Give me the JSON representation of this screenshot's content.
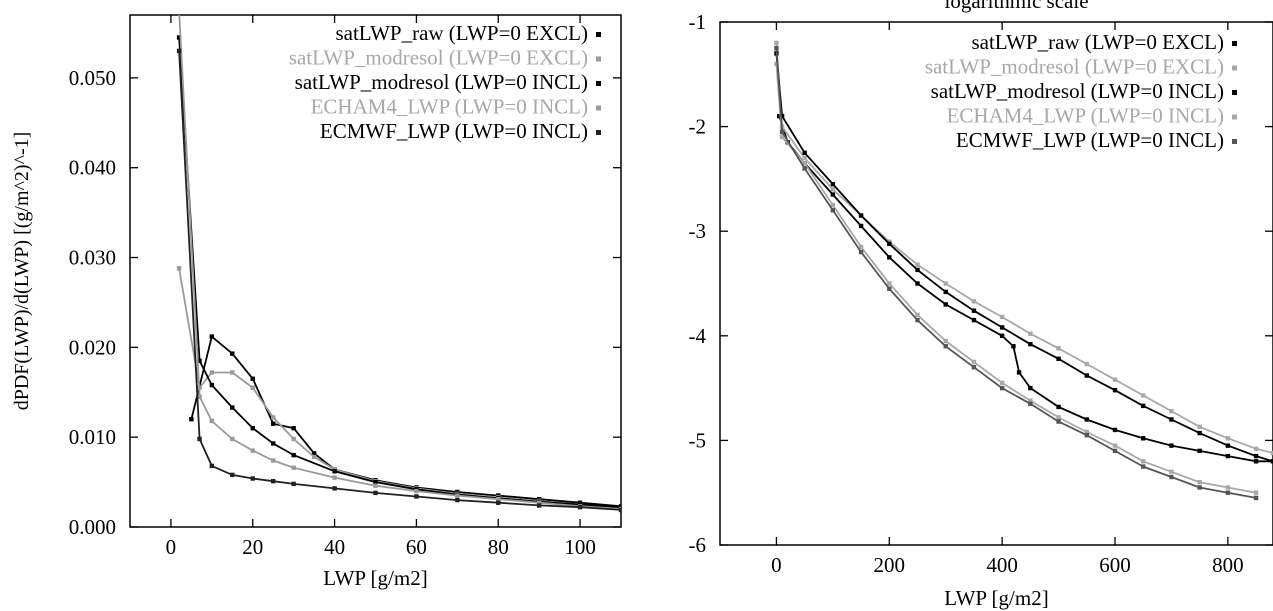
{
  "chart_data": [
    {
      "type": "line",
      "title": "",
      "xlabel": "LWP [g/m2]",
      "ylabel": "dPDF(LWP)/d(LWP) [(g/m^2)^-1]",
      "xlim": [
        -10,
        110
      ],
      "ylim": [
        0.0,
        0.057
      ],
      "xticks": [
        0,
        20,
        40,
        60,
        80,
        100
      ],
      "xtick_labels": [
        "0",
        "20",
        "40",
        "60",
        "80",
        "100"
      ],
      "yticks": [
        0.0,
        0.01,
        0.02,
        0.03,
        0.04,
        0.05
      ],
      "ytick_labels": [
        "0.000",
        "0.010",
        "0.020",
        "0.030",
        "0.040",
        "0.050"
      ],
      "grid": false,
      "legend_position": "top-right",
      "series": [
        {
          "name": "satLWP_raw (LWP=0 EXCL)",
          "color": "#000000",
          "x": [
            5,
            10,
            15,
            20,
            25,
            30,
            35,
            40,
            50,
            60,
            70,
            80,
            90,
            100,
            110
          ],
          "y": [
            0.012,
            0.0212,
            0.0193,
            0.0165,
            0.0115,
            0.011,
            0.0082,
            0.0064,
            0.0052,
            0.0044,
            0.0039,
            0.0035,
            0.0031,
            0.0027,
            0.0023
          ]
        },
        {
          "name": "satLWP_modresol (LWP=0 EXCL)",
          "color": "#9a9a9a",
          "x": [
            2,
            7,
            10,
            15,
            20,
            25,
            30,
            35,
            40,
            50,
            60,
            70,
            80,
            90,
            100,
            110
          ],
          "y": [
            0.0288,
            0.0155,
            0.0172,
            0.0172,
            0.0155,
            0.0122,
            0.0098,
            0.0078,
            0.0064,
            0.0051,
            0.0043,
            0.0037,
            0.0033,
            0.0029,
            0.0025,
            0.0021
          ]
        },
        {
          "name": "satLWP_modresol (LWP=0 INCL)",
          "color": "#000000",
          "x": [
            2,
            7,
            10,
            15,
            20,
            25,
            30,
            40,
            50,
            60,
            70,
            80,
            90,
            100,
            110
          ],
          "y": [
            0.0545,
            0.0185,
            0.0158,
            0.0133,
            0.011,
            0.0093,
            0.008,
            0.0062,
            0.005,
            0.0042,
            0.0036,
            0.0032,
            0.0028,
            0.0025,
            0.0022
          ]
        },
        {
          "name": "ECHAM4_LWP (LWP=0 INCL)",
          "color": "#9a9a9a",
          "x": [
            2,
            7,
            10,
            15,
            20,
            25,
            30,
            40,
            50,
            60,
            70,
            80,
            90,
            100,
            110
          ],
          "y": [
            0.0575,
            0.0145,
            0.0118,
            0.0098,
            0.0085,
            0.0074,
            0.0066,
            0.0055,
            0.0046,
            0.004,
            0.0035,
            0.0031,
            0.0027,
            0.0023,
            0.002
          ]
        },
        {
          "name": "ECMWF_LWP (LWP=0 INCL)",
          "color": "#222222",
          "x": [
            2,
            7,
            10,
            15,
            20,
            25,
            30,
            40,
            50,
            60,
            70,
            80,
            90,
            100,
            110
          ],
          "y": [
            0.053,
            0.0098,
            0.0068,
            0.0058,
            0.0054,
            0.0051,
            0.0048,
            0.0043,
            0.0038,
            0.0034,
            0.003,
            0.0027,
            0.0024,
            0.0022,
            0.0019
          ]
        }
      ]
    },
    {
      "type": "line",
      "title": "logarithmic scale",
      "xlabel": "LWP [g/m2]",
      "ylabel": "",
      "xlim": [
        -100,
        880
      ],
      "ylim": [
        -6,
        -1
      ],
      "xticks": [
        0,
        200,
        400,
        600,
        800
      ],
      "xtick_labels": [
        "0",
        "200",
        "400",
        "600",
        "800"
      ],
      "yticks": [
        -6,
        -5,
        -4,
        -3,
        -2,
        -1
      ],
      "ytick_labels": [
        "-6",
        "-5",
        "-4",
        "-3",
        "-2",
        "-1"
      ],
      "grid": false,
      "legend_position": "top-right",
      "series": [
        {
          "name": "satLWP_raw (LWP=0 EXCL)",
          "color": "#000000",
          "x": [
            5,
            20,
            50,
            100,
            150,
            200,
            250,
            300,
            350,
            400,
            420,
            430,
            450,
            500,
            550,
            600,
            650,
            700,
            750,
            800,
            850,
            880
          ],
          "y": [
            -1.9,
            -2.15,
            -2.35,
            -2.65,
            -2.95,
            -3.25,
            -3.5,
            -3.7,
            -3.85,
            -4.0,
            -4.1,
            -4.35,
            -4.5,
            -4.68,
            -4.8,
            -4.9,
            -4.98,
            -5.05,
            -5.1,
            -5.15,
            -5.2,
            -5.2
          ]
        },
        {
          "name": "satLWP_modresol (LWP=0 EXCL)",
          "color": "#a8a8a8",
          "x": [
            0,
            10,
            50,
            100,
            150,
            200,
            250,
            300,
            350,
            400,
            450,
            500,
            550,
            600,
            650,
            700,
            750,
            800,
            850,
            880
          ],
          "y": [
            -1.2,
            -2.0,
            -2.3,
            -2.6,
            -2.85,
            -3.1,
            -3.32,
            -3.5,
            -3.67,
            -3.82,
            -3.98,
            -4.12,
            -4.27,
            -4.42,
            -4.57,
            -4.72,
            -4.87,
            -4.98,
            -5.08,
            -5.12
          ]
        },
        {
          "name": "satLWP_modresol (LWP=0 INCL)",
          "color": "#000000",
          "x": [
            0,
            10,
            50,
            100,
            150,
            200,
            250,
            300,
            350,
            400,
            450,
            500,
            550,
            600,
            650,
            700,
            750,
            800,
            850,
            880
          ],
          "y": [
            -1.3,
            -1.9,
            -2.25,
            -2.55,
            -2.85,
            -3.12,
            -3.37,
            -3.58,
            -3.76,
            -3.92,
            -4.08,
            -4.22,
            -4.38,
            -4.52,
            -4.67,
            -4.8,
            -4.93,
            -5.05,
            -5.15,
            -5.2
          ]
        },
        {
          "name": "ECHAM4_LWP (LWP=0 INCL)",
          "color": "#a8a8a8",
          "x": [
            0,
            10,
            50,
            100,
            150,
            200,
            250,
            300,
            350,
            400,
            450,
            500,
            550,
            600,
            650,
            700,
            750,
            800,
            850
          ],
          "y": [
            -1.4,
            -2.1,
            -2.35,
            -2.75,
            -3.15,
            -3.5,
            -3.8,
            -4.05,
            -4.25,
            -4.45,
            -4.62,
            -4.78,
            -4.92,
            -5.05,
            -5.2,
            -5.3,
            -5.4,
            -5.45,
            -5.5
          ]
        },
        {
          "name": "ECMWF_LWP (LWP=0 INCL)",
          "color": "#555555",
          "x": [
            0,
            10,
            50,
            100,
            150,
            200,
            250,
            300,
            350,
            400,
            450,
            500,
            550,
            600,
            650,
            700,
            750,
            800,
            850
          ],
          "y": [
            -1.25,
            -2.05,
            -2.4,
            -2.8,
            -3.2,
            -3.55,
            -3.85,
            -4.1,
            -4.3,
            -4.5,
            -4.65,
            -4.82,
            -4.95,
            -5.1,
            -5.25,
            -5.35,
            -5.45,
            -5.5,
            -5.55
          ]
        }
      ]
    }
  ]
}
